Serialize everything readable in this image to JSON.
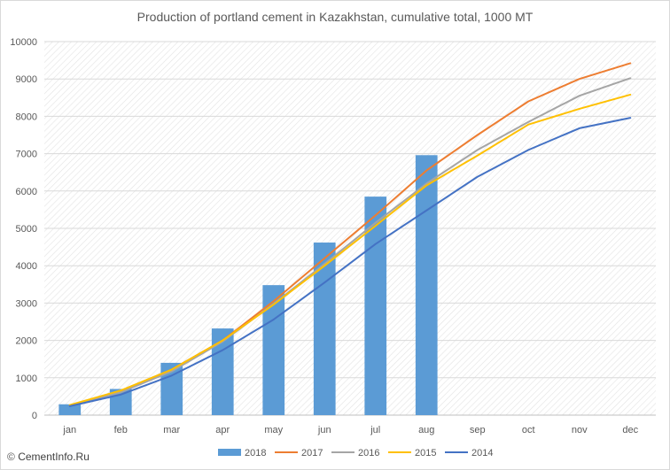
{
  "chart_data": {
    "type": "bar",
    "title": "Production of portland cement in Kazakhstan, cumulative total, 1000 MT",
    "xlabel": "",
    "ylabel": "",
    "ylim": [
      0,
      10000
    ],
    "yticks": [
      0,
      1000,
      2000,
      3000,
      4000,
      5000,
      6000,
      7000,
      8000,
      9000,
      10000
    ],
    "categories": [
      "jan",
      "feb",
      "mar",
      "apr",
      "may",
      "jun",
      "jul",
      "aug",
      "sep",
      "oct",
      "nov",
      "dec"
    ],
    "grid": true,
    "legend_position": "bottom",
    "series": [
      {
        "name": "2018",
        "type": "bar",
        "color": "#5b9bd5",
        "values": [
          290,
          700,
          1400,
          2320,
          3480,
          4620,
          5850,
          6960,
          null,
          null,
          null,
          null
        ]
      },
      {
        "name": "2017",
        "type": "line",
        "color": "#ed7d31",
        "values": [
          250,
          650,
          1220,
          2000,
          3050,
          4200,
          5350,
          6550,
          7500,
          8400,
          9000,
          9420
        ]
      },
      {
        "name": "2016",
        "type": "line",
        "color": "#a5a5a5",
        "values": [
          260,
          610,
          1170,
          1970,
          2980,
          4050,
          5150,
          6200,
          7100,
          7850,
          8550,
          9020
        ]
      },
      {
        "name": "2015",
        "type": "line",
        "color": "#ffc000",
        "values": [
          270,
          660,
          1220,
          2000,
          2960,
          4000,
          5070,
          6150,
          6950,
          7780,
          8200,
          8580
        ]
      },
      {
        "name": "2014",
        "type": "line",
        "color": "#4472c4",
        "values": [
          240,
          550,
          1060,
          1740,
          2560,
          3550,
          4580,
          5480,
          6380,
          7100,
          7680,
          7960
        ]
      }
    ]
  },
  "footer": {
    "brand_icon": "copyright-icon",
    "brand_mark": "©",
    "brand_text": "CementInfo.Ru"
  }
}
